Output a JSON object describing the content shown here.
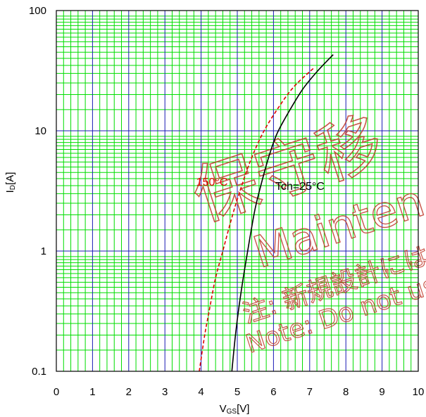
{
  "chart_data": {
    "type": "line",
    "title": "",
    "xlabel": "VGS[V]",
    "xlabel_main": "V",
    "xlabel_sub": "GS",
    "xlabel_unit": "[V]",
    "ylabel": "ID[A]",
    "ylabel_main": "I",
    "ylabel_sub": "D",
    "ylabel_unit": "[A]",
    "xlim": [
      0,
      10
    ],
    "ylim": [
      0.1,
      100
    ],
    "yscale": "log",
    "grid": true,
    "x_ticks": [
      "0",
      "1",
      "2",
      "3",
      "4",
      "5",
      "6",
      "7",
      "8",
      "9",
      "10"
    ],
    "y_ticks": [
      {
        "value": 0.1,
        "label": "0.1"
      },
      {
        "value": 1,
        "label": "1"
      },
      {
        "value": 10,
        "label": "10"
      },
      {
        "value": 100,
        "label": "100"
      }
    ],
    "colors": {
      "major_grid": "#1a1ab4",
      "minor_grid": "#00dd00",
      "series_25": "#000000",
      "series_150": "#e00000",
      "watermark": "#c0392b"
    },
    "series": [
      {
        "name": "Tch=25°C",
        "color": "#000000",
        "style": "solid",
        "points": [
          [
            4.85,
            0.1
          ],
          [
            4.95,
            0.2
          ],
          [
            5.05,
            0.35
          ],
          [
            5.2,
            0.7
          ],
          [
            5.35,
            1.3
          ],
          [
            5.5,
            2.3
          ],
          [
            5.7,
            4.0
          ],
          [
            5.9,
            6.5
          ],
          [
            6.1,
            9.5
          ],
          [
            6.4,
            14
          ],
          [
            6.8,
            22
          ],
          [
            7.2,
            31
          ],
          [
            7.65,
            43
          ]
        ]
      },
      {
        "name": "150°C",
        "color": "#e00000",
        "style": "dashed",
        "points": [
          [
            3.95,
            0.1
          ],
          [
            4.1,
            0.2
          ],
          [
            4.25,
            0.35
          ],
          [
            4.4,
            0.6
          ],
          [
            4.6,
            1.0
          ],
          [
            4.85,
            1.9
          ],
          [
            5.05,
            3.0
          ],
          [
            5.35,
            5.5
          ],
          [
            5.7,
            9.5
          ],
          [
            6.1,
            15
          ],
          [
            6.55,
            23
          ],
          [
            7.1,
            33
          ]
        ]
      }
    ],
    "annotations": [
      {
        "text": "150°C",
        "x": 4.45,
        "y": 3.8,
        "color": "#e00000"
      },
      {
        "text": "Tch=25°C",
        "x": 6.05,
        "y": 3.5,
        "color": "#000000"
      }
    ],
    "watermark": {
      "line1": "保守移",
      "line2": "Mainten",
      "line3": "注: 新規設計には使",
      "line4": "Note: Do not use th"
    }
  }
}
